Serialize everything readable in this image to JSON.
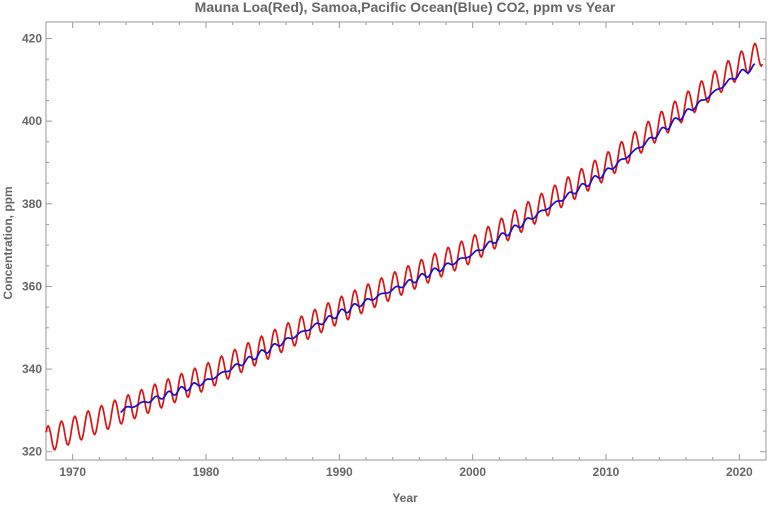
{
  "chart_data": {
    "type": "line",
    "title": "Mauna Loa(Red), Samoa,Pacific Ocean(Blue) CO2, ppm vs Year",
    "xlabel": "Year",
    "ylabel": "Concentration, ppm",
    "xlim": [
      1968,
      2022
    ],
    "ylim": [
      318,
      424
    ],
    "x_ticks": [
      1970,
      1980,
      1990,
      2000,
      2010,
      2020
    ],
    "y_ticks": [
      320,
      340,
      360,
      380,
      400,
      420
    ],
    "grid": false,
    "series": [
      {
        "name": "Mauna Loa",
        "color": "#dd1111",
        "start_year": 1968.0,
        "end_year": 2021.8,
        "step_years": 0.0833,
        "trend_years": [
          1968,
          1970,
          1980,
          1990,
          2000,
          2010,
          2020,
          2021.8
        ],
        "trend_ppm": [
          322.9,
          325.2,
          338.1,
          354.2,
          369.0,
          389.0,
          413.5,
          416.8
        ],
        "seasonal_amplitude_ppm": 3.2
      },
      {
        "name": "Samoa, Pacific Ocean",
        "color": "#1111cc",
        "start_year": 1973.6,
        "end_year": 2021.2,
        "step_years": 0.0833,
        "trend_years": [
          1973.6,
          1980,
          1990,
          2000,
          2010,
          2020,
          2021.2
        ],
        "trend_ppm": [
          330.0,
          337.0,
          353.5,
          367.8,
          387.7,
          411.5,
          413.2
        ],
        "seasonal_amplitude_ppm": 0.5
      }
    ]
  }
}
